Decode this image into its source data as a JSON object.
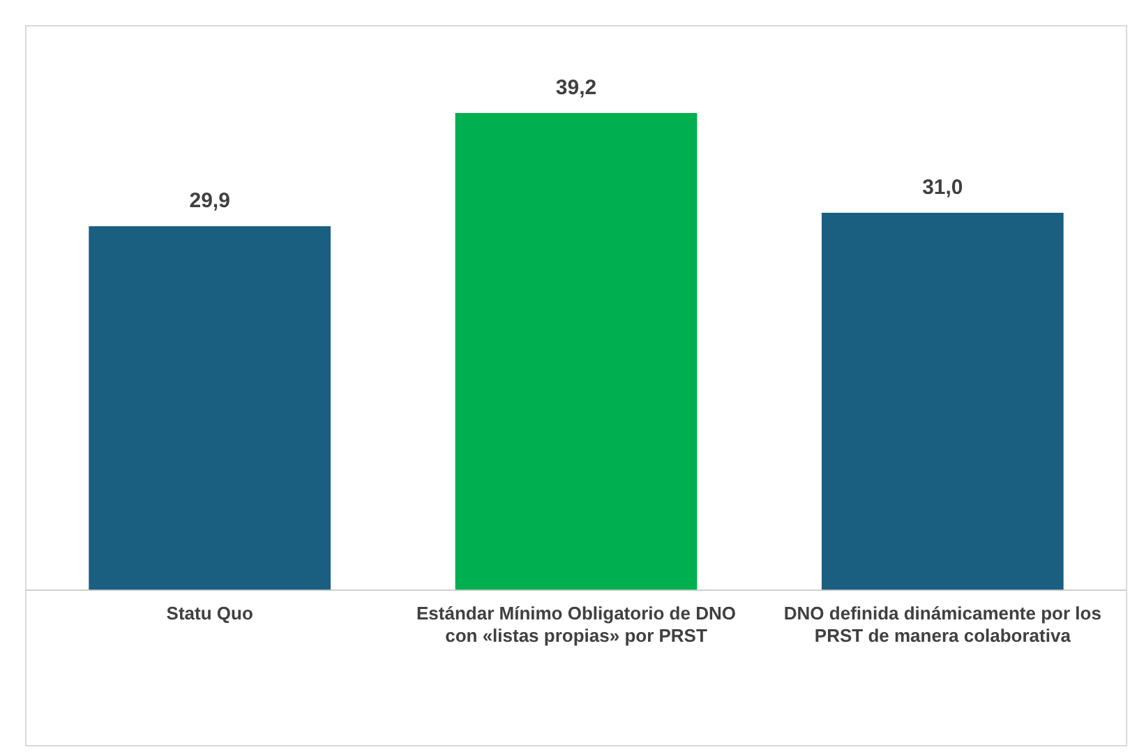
{
  "chart_data": {
    "type": "bar",
    "categories": [
      "Statu Quo",
      "Estándar Mínimo Obligatorio de DNO con «listas propias» por PRST",
      "DNO definida dinámicamente por los PRST de manera colaborativa"
    ],
    "values": [
      29.9,
      39.2,
      31.0
    ],
    "colors": [
      "#1a5e80",
      "#00b050",
      "#1a5e80"
    ],
    "value_labels": [
      "29,9",
      "39,2",
      "31,0"
    ],
    "grid": false,
    "legend": false
  }
}
